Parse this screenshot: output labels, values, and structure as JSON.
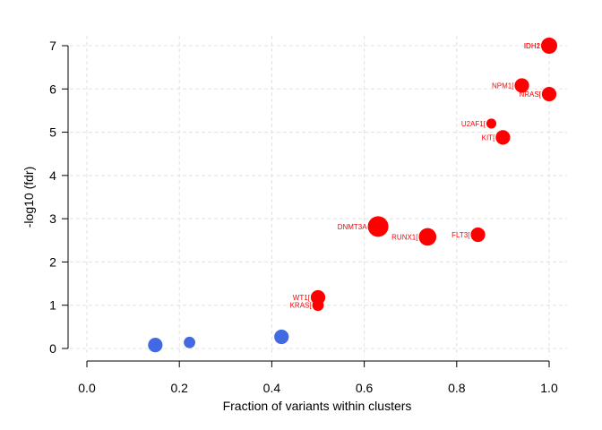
{
  "chart_data": {
    "type": "scatter",
    "title": "",
    "xlabel": "Fraction of variants within clusters",
    "ylabel": "-log10 (fdr)",
    "xlim": [
      0.0,
      1.0
    ],
    "ylim": [
      0,
      7
    ],
    "xticks": [
      "0.0",
      "0.2",
      "0.4",
      "0.6",
      "0.8",
      "1.0"
    ],
    "yticks": [
      "0",
      "1",
      "2",
      "3",
      "4",
      "5",
      "6",
      "7"
    ],
    "grid": true,
    "colors": {
      "significant": "#ff0000",
      "not_significant": "#4169e1"
    },
    "points": [
      {
        "x": 0.148,
        "y": 0.08,
        "size": 3,
        "label": "",
        "color": "#4169e1"
      },
      {
        "x": 0.222,
        "y": 0.14,
        "size": 2,
        "label": "",
        "color": "#4169e1"
      },
      {
        "x": 0.421,
        "y": 0.27,
        "size": 3,
        "label": "",
        "color": "#4169e1"
      },
      {
        "x": 0.5,
        "y": 1.18,
        "size": 3,
        "label": "WT1[",
        "color": "#ff0000"
      },
      {
        "x": 0.5,
        "y": 1.0,
        "size": 2,
        "label": "KRAS[",
        "color": "#ff0000"
      },
      {
        "x": 0.63,
        "y": 2.82,
        "size": 5,
        "label": "DNMT3A",
        "color": "#ff0000"
      },
      {
        "x": 0.737,
        "y": 2.58,
        "size": 4,
        "label": "RUNX1[",
        "color": "#ff0000"
      },
      {
        "x": 0.846,
        "y": 2.63,
        "size": 3,
        "label": "FLT3[",
        "color": "#ff0000"
      },
      {
        "x": 0.875,
        "y": 5.2,
        "size": 1.5,
        "label": "U2AF1[",
        "color": "#ff0000"
      },
      {
        "x": 0.9,
        "y": 4.88,
        "size": 3,
        "label": "KIT[",
        "color": "#ff0000"
      },
      {
        "x": 0.941,
        "y": 6.08,
        "size": 3,
        "label": "NPM1[",
        "color": "#ff0000"
      },
      {
        "x": 1.0,
        "y": 5.88,
        "size": 3,
        "label": "NRAS[",
        "color": "#ff0000"
      },
      {
        "x": 1.0,
        "y": 7.0,
        "size": 3.5,
        "label": "IDH2",
        "color": "#ff0000"
      },
      {
        "x": 1.0,
        "y": 7.0,
        "size": 3.5,
        "label": "IDH1",
        "color": "#ff0000"
      }
    ]
  }
}
